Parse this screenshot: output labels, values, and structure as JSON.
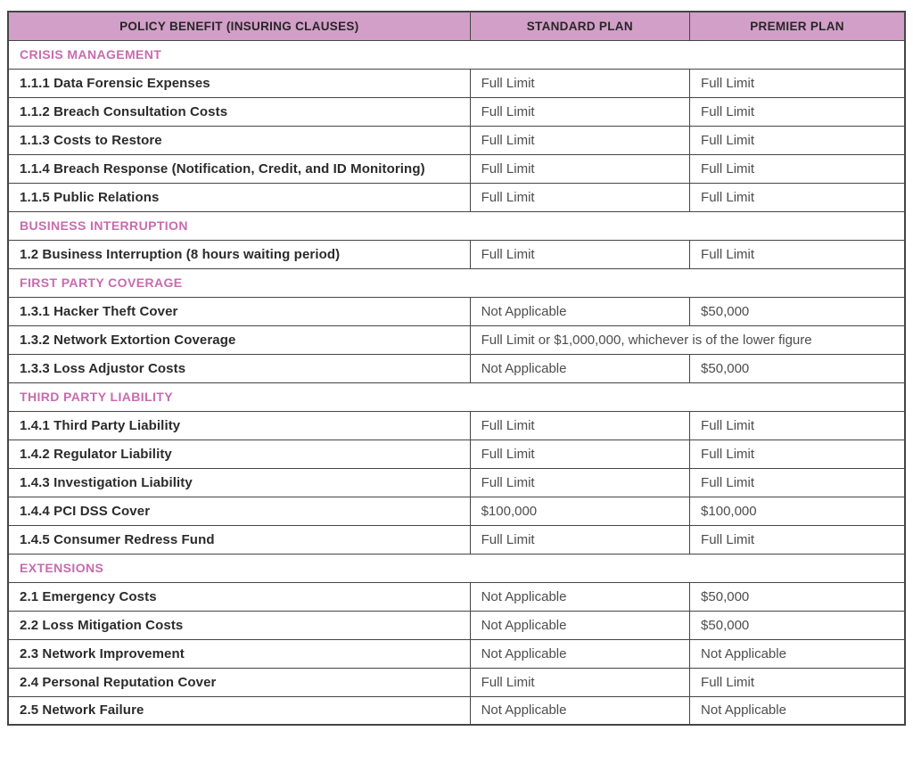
{
  "colors": {
    "header_bg": "#d29fc8",
    "section_title_text": "#c76bae",
    "border": "#454545",
    "benefit_text": "#2b2b2b",
    "value_text": "#4d4d4d",
    "header_text": "#262626"
  },
  "table": {
    "headers": [
      "POLICY BENEFIT (INSURING CLAUSES)",
      "STANDARD PLAN",
      "PREMIER PLAN"
    ],
    "sections": [
      {
        "title": "CRISIS MANAGEMENT",
        "rows": [
          {
            "benefit": "1.1.1 Data Forensic Expenses",
            "standard": "Full Limit",
            "premier": "Full Limit"
          },
          {
            "benefit": "1.1.2 Breach Consultation Costs",
            "standard": "Full Limit",
            "premier": "Full Limit"
          },
          {
            "benefit": "1.1.3 Costs to Restore",
            "standard": "Full Limit",
            "premier": "Full Limit"
          },
          {
            "benefit": "1.1.4 Breach Response (Notification, Credit, and ID Monitoring)",
            "standard": "Full Limit",
            "premier": "Full Limit"
          },
          {
            "benefit": "1.1.5 Public Relations",
            "standard": "Full Limit",
            "premier": "Full Limit"
          }
        ]
      },
      {
        "title": "BUSINESS INTERRUPTION",
        "rows": [
          {
            "benefit": "1.2 Business Interruption (8 hours waiting period)",
            "standard": "Full Limit",
            "premier": "Full Limit"
          }
        ]
      },
      {
        "title": "FIRST PARTY COVERAGE",
        "rows": [
          {
            "benefit": "1.3.1 Hacker Theft Cover",
            "standard": "Not Applicable",
            "premier": "$50,000"
          },
          {
            "benefit": "1.3.2 Network Extortion Coverage",
            "merged": "Full Limit or $1,000,000, whichever is of the lower figure"
          },
          {
            "benefit": "1.3.3 Loss Adjustor Costs",
            "standard": "Not Applicable",
            "premier": "$50,000"
          }
        ]
      },
      {
        "title": "THIRD PARTY LIABILITY",
        "rows": [
          {
            "benefit": "1.4.1 Third Party Liability",
            "standard": "Full Limit",
            "premier": "Full Limit"
          },
          {
            "benefit": "1.4.2 Regulator Liability",
            "standard": "Full Limit",
            "premier": "Full Limit"
          },
          {
            "benefit": "1.4.3 Investigation Liability",
            "standard": "Full Limit",
            "premier": "Full Limit"
          },
          {
            "benefit": "1.4.4 PCI DSS Cover",
            "standard": "$100,000",
            "premier": "$100,000"
          },
          {
            "benefit": "1.4.5 Consumer Redress Fund",
            "standard": "Full Limit",
            "premier": "Full Limit"
          }
        ]
      },
      {
        "title": "EXTENSIONS",
        "rows": [
          {
            "benefit": "2.1 Emergency Costs",
            "standard": "Not Applicable",
            "premier": "$50,000"
          },
          {
            "benefit": "2.2 Loss Mitigation Costs",
            "standard": "Not Applicable",
            "premier": "$50,000"
          },
          {
            "benefit": "2.3 Network Improvement",
            "standard": "Not Applicable",
            "premier": "Not Applicable"
          },
          {
            "benefit": "2.4 Personal Reputation Cover",
            "standard": "Full Limit",
            "premier": "Full Limit"
          },
          {
            "benefit": "2.5 Network Failure",
            "standard": "Not Applicable",
            "premier": "Not Applicable"
          }
        ]
      }
    ]
  }
}
